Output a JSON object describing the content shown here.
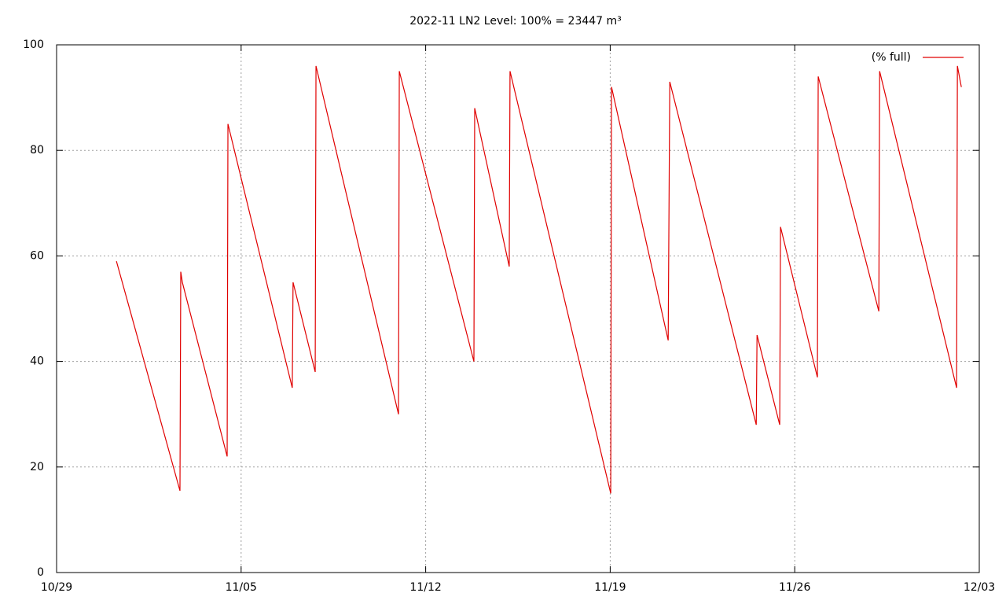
{
  "chart_data": {
    "type": "line",
    "title": "2022-11 LN2 Level: 100% = 23447 m³",
    "x": [
      2.27,
      4.68,
      4.71,
      4.77,
      6.47,
      6.5,
      8.94,
      8.97,
      9.81,
      9.84,
      12.97,
      13.0,
      15.83,
      15.86,
      17.17,
      17.2,
      21.02,
      21.05,
      23.2,
      23.26,
      26.54,
      26.57,
      27.43,
      27.46,
      28.86,
      28.89,
      31.19,
      31.22,
      34.14,
      34.17,
      34.32
    ],
    "series": [
      {
        "name": "(% full)",
        "color": "#e00000",
        "values": [
          59,
          15.5,
          57,
          55,
          22,
          85,
          35,
          55,
          38,
          96,
          30,
          95,
          40,
          88,
          58,
          95,
          15,
          92,
          44,
          93,
          28,
          45,
          28,
          65.5,
          37,
          94,
          49.5,
          95,
          35,
          96,
          92
        ]
      }
    ],
    "xlim": [
      0,
      35
    ],
    "xticks": [
      {
        "value": 0,
        "label": "10/29"
      },
      {
        "value": 7,
        "label": "11/05"
      },
      {
        "value": 14,
        "label": "11/12"
      },
      {
        "value": 21,
        "label": "11/19"
      },
      {
        "value": 28,
        "label": "11/26"
      },
      {
        "value": 35,
        "label": "12/03"
      }
    ],
    "ylim": [
      0,
      100
    ],
    "yticks": [
      0,
      20,
      40,
      60,
      80,
      100
    ],
    "grid": true,
    "legend": "top-right"
  }
}
